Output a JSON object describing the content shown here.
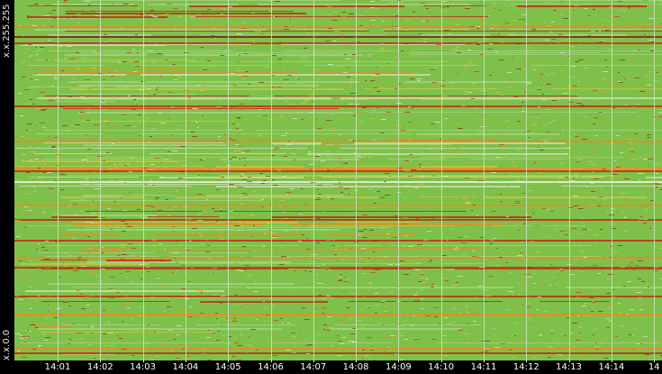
{
  "chart_data": {
    "type": "heatmap",
    "title": "",
    "xlabel": "",
    "ylabel": "",
    "x_tick_labels": [
      "14:01",
      "14:02",
      "14:03",
      "14:04",
      "14:05",
      "14:06",
      "14:07",
      "14:08",
      "14:09",
      "14:10",
      "14:11",
      "14:12",
      "14:13",
      "14:14",
      "14"
    ],
    "y_labels": {
      "top": "x.x.255.255",
      "bottom": "x.x.0.0"
    },
    "colors": {
      "background": "#7fc04a",
      "light": "#a8d78a",
      "white": "#e8f3df",
      "yellow": "#e6c63a",
      "orange": "#e88a1d",
      "red": "#c62a16",
      "dark_red": "#7b1a10",
      "grid": "#cfe8c0"
    }
  }
}
